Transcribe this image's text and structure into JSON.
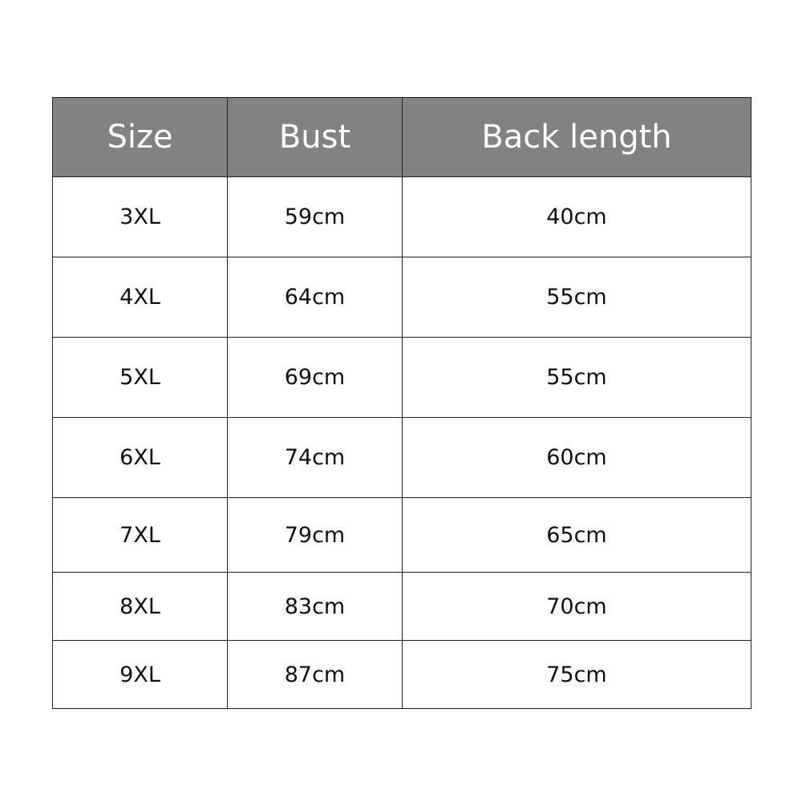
{
  "table": {
    "header": [
      "Size",
      "Bust",
      "Back length"
    ],
    "rows": [
      [
        "3XL",
        "59cm",
        "40cm"
      ],
      [
        "4XL",
        "64cm",
        "55cm"
      ],
      [
        "5XL",
        "69cm",
        "55cm"
      ],
      [
        "6XL",
        "74cm",
        "60cm"
      ],
      [
        "7XL",
        "79cm",
        "65cm"
      ],
      [
        "8XL",
        "83cm",
        "70cm"
      ],
      [
        "9XL",
        "87cm",
        "75cm"
      ]
    ]
  }
}
